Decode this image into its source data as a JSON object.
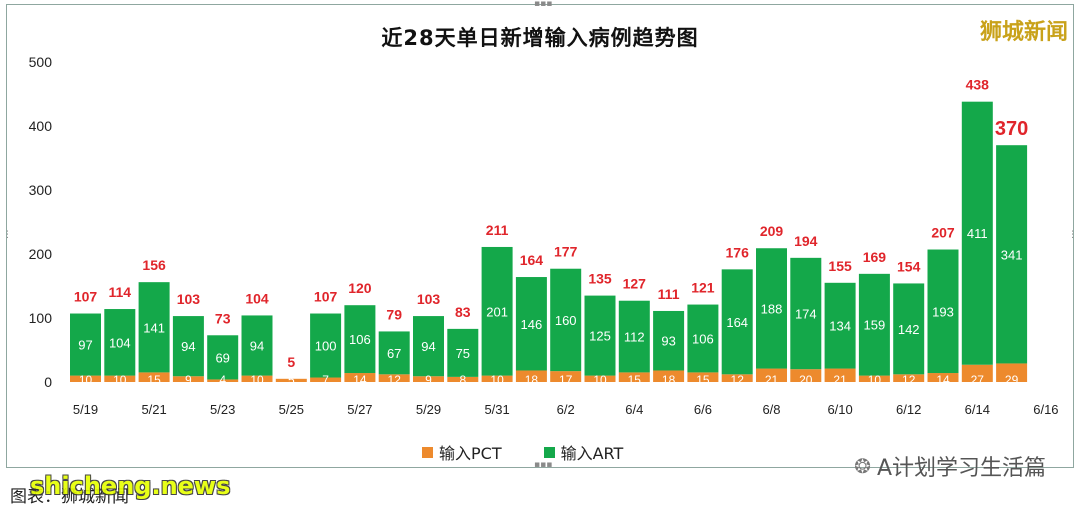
{
  "chart_data": {
    "type": "bar",
    "stacked": true,
    "title": "近28天单日新增输入病例趋势图",
    "categories": [
      "5/19",
      "5/20",
      "5/21",
      "5/22",
      "5/23",
      "5/24",
      "5/25",
      "5/26",
      "5/27",
      "5/28",
      "5/29",
      "5/30",
      "5/31",
      "6/1",
      "6/2",
      "6/3",
      "6/4",
      "6/5",
      "6/6",
      "6/7",
      "6/8",
      "6/9",
      "6/10",
      "6/11",
      "6/12",
      "6/13",
      "6/14",
      "6/15"
    ],
    "x_tick_labels": [
      "5/19",
      "5/21",
      "5/23",
      "5/25",
      "5/27",
      "5/29",
      "5/31",
      "6/2",
      "6/4",
      "6/6",
      "6/8",
      "6/10",
      "6/12",
      "6/14",
      "6/16"
    ],
    "series": [
      {
        "name": "输入PCT",
        "color": "#ed8a2d",
        "values": [
          10,
          10,
          15,
          9,
          4,
          10,
          5,
          7,
          14,
          12,
          9,
          8,
          10,
          18,
          17,
          10,
          15,
          18,
          15,
          12,
          21,
          20,
          21,
          10,
          12,
          14,
          27,
          29
        ]
      },
      {
        "name": "输入ART",
        "color": "#14a84a",
        "values": [
          97,
          104,
          141,
          94,
          69,
          94,
          null,
          100,
          106,
          67,
          94,
          75,
          201,
          146,
          160,
          125,
          112,
          93,
          106,
          164,
          188,
          174,
          134,
          159,
          142,
          193,
          411,
          341
        ]
      }
    ],
    "totals": [
      107,
      114,
      156,
      103,
      73,
      104,
      5,
      107,
      120,
      79,
      103,
      83,
      211,
      164,
      177,
      135,
      127,
      111,
      121,
      176,
      209,
      194,
      155,
      169,
      154,
      207,
      438,
      370
    ],
    "highlight_total_index": 27,
    "ylim": [
      0,
      500
    ],
    "y_ticks": [
      0,
      100,
      200,
      300,
      400,
      500
    ],
    "grid": false,
    "legend_position": "bottom"
  },
  "brand": "狮城新闻",
  "footer": {
    "left_text": "图表：狮城新闻",
    "watermark": "shicheng.news",
    "wechat_name": "A计划学习生活篇"
  },
  "colors": {
    "pct": "#ed8a2d",
    "art": "#14a84a",
    "total_label": "#e0252b",
    "brand": "#c9a21a"
  }
}
